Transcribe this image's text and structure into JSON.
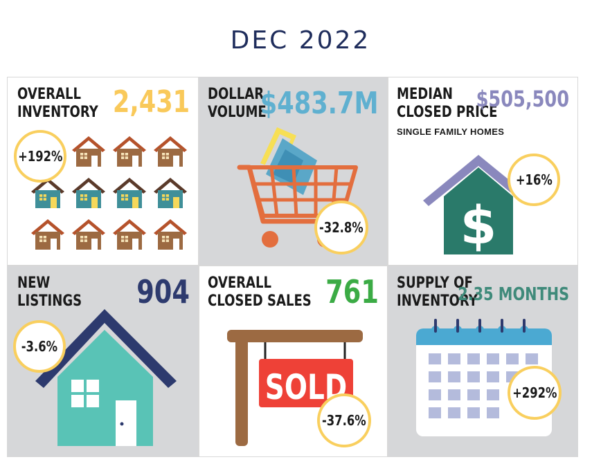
{
  "header": {
    "title": "DEC 2022"
  },
  "tiles": [
    {
      "label_1": "OVERALL",
      "label_2": "INVENTORY",
      "value": "2,431",
      "change": "+192%",
      "value_color": "#f9c95a"
    },
    {
      "label_1": "DOLLAR",
      "label_2": "VOLUME",
      "value": "$483.7M",
      "change": "-32.8%",
      "value_color": "#5fb0d0"
    },
    {
      "label_1": "MEDIAN",
      "label_2": "CLOSED PRICE",
      "sub": "SINGLE FAMILY HOMES",
      "value": "$505,500",
      "change": "+16%",
      "value_color": "#8a88bd"
    },
    {
      "label_1": "NEW",
      "label_2": "LISTINGS",
      "value": "904",
      "change": "-3.6%",
      "value_color": "#2d3a6e"
    },
    {
      "label_1": "OVERALL",
      "label_2": "CLOSED SALES",
      "value": "761",
      "change": "-37.6%",
      "value_color": "#3bab45",
      "sign_text": "SOLD"
    },
    {
      "label_1": "SUPPLY OF",
      "label_2": "INVENTORY",
      "value": "2.35 MONTHS",
      "change": "+292%",
      "value_color": "#3f8a7a"
    }
  ],
  "icons": [
    "houses-grid-icon",
    "shopping-cart-icon",
    "dollar-house-icon",
    "house-icon",
    "sold-sign-icon",
    "calendar-icon"
  ]
}
